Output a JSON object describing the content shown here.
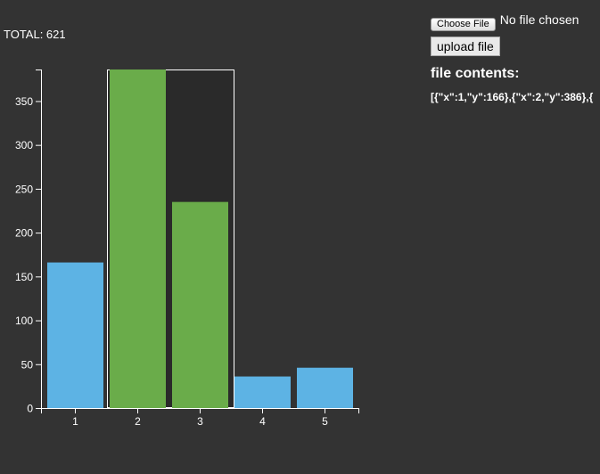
{
  "total": {
    "label": "TOTAL: 621"
  },
  "file_input": {
    "button_label": "Choose File",
    "status": "No file chosen"
  },
  "upload": {
    "button_label": "upload file"
  },
  "file_contents": {
    "heading": "file contents:",
    "text": "[{\"x\":1,\"y\":166},{\"x\":2,\"y\":386},{"
  },
  "colors": {
    "background": "#333333",
    "bar_default": "#5db3e4",
    "bar_selected": "#6aac4a",
    "brush_fill": "#2a2a2a",
    "brush_stroke": "#ffffff"
  },
  "chart_data": {
    "type": "bar",
    "categories": [
      "1",
      "2",
      "3",
      "4",
      "5"
    ],
    "values": [
      166,
      386,
      235,
      36,
      46
    ],
    "selected": [
      "2",
      "3"
    ],
    "ylim": [
      0,
      386
    ],
    "yticks": [
      0,
      50,
      100,
      150,
      200,
      250,
      300,
      350
    ],
    "title": "",
    "xlabel": "",
    "ylabel": ""
  }
}
